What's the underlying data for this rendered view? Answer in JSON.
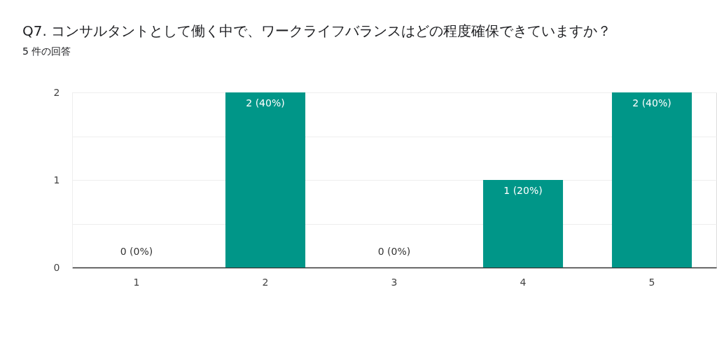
{
  "chart_data": {
    "type": "bar",
    "title": "Q7. コンサルタントとして働く中で、ワークライフバランスはどの程度確保できていますか？",
    "subtitle": "5 件の回答",
    "categories": [
      "1",
      "2",
      "3",
      "4",
      "5"
    ],
    "values": [
      0,
      2,
      0,
      1,
      2
    ],
    "color": "#009688",
    "value_labels": [
      "0 (0%)",
      "2 (40%)",
      "0 (0%)",
      "1 (20%)",
      "2 (40%)"
    ],
    "ylim": [
      0,
      2
    ],
    "yticks": [
      0,
      {
        "value": 0.5,
        "label": null
      },
      1,
      {
        "value": 1.5,
        "label": null
      },
      2
    ],
    "grid": "y"
  }
}
